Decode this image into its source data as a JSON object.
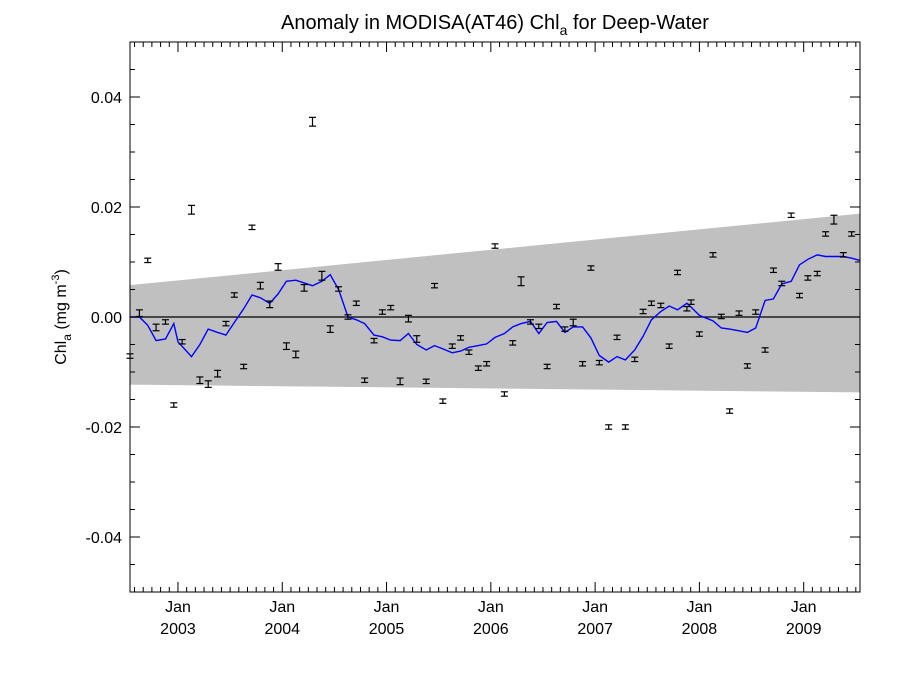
{
  "chart_data": {
    "type": "scatter",
    "title": "Anomaly in MODISA(AT46) Chl",
    "title_subscript": "a",
    "title_suffix": " for Deep-Water",
    "ylabel": "Chl",
    "ylabel_subscript": "a",
    "ylabel_units": " (mg m",
    "ylabel_units_superscript": "-3",
    "ylabel_units_close": ")",
    "xlim": [
      2002.54,
      2009.54
    ],
    "ylim": [
      -0.05,
      0.05
    ],
    "y_ticks": [
      {
        "value": -0.04,
        "label": "-0.04"
      },
      {
        "value": -0.02,
        "label": "-0.02"
      },
      {
        "value": 0.0,
        "label": "0.00"
      },
      {
        "value": 0.02,
        "label": "0.02"
      },
      {
        "value": 0.04,
        "label": "0.04"
      }
    ],
    "x_ticks": [
      {
        "value": 2003.0,
        "month": "Jan",
        "year": "2003"
      },
      {
        "value": 2004.0,
        "month": "Jan",
        "year": "2004"
      },
      {
        "value": 2005.0,
        "month": "Jan",
        "year": "2005"
      },
      {
        "value": 2006.0,
        "month": "Jan",
        "year": "2006"
      },
      {
        "value": 2007.0,
        "month": "Jan",
        "year": "2007"
      },
      {
        "value": 2008.0,
        "month": "Jan",
        "year": "2008"
      },
      {
        "value": 2009.0,
        "month": "Jan",
        "year": "2009"
      }
    ],
    "band": {
      "color": "#c0c0c0",
      "upper": [
        [
          2002.54,
          0.0058
        ],
        [
          2009.54,
          0.0188
        ]
      ],
      "lower": [
        [
          2002.54,
          -0.0123
        ],
        [
          2009.54,
          -0.0137
        ]
      ]
    },
    "zero_line": true,
    "grid": false,
    "legend": "none",
    "series": [
      {
        "marker": "errorbar",
        "color": "#000000",
        "points": [
          {
            "x": 2002.54,
            "y": -0.0071,
            "err": 0.0004
          },
          {
            "x": 2002.63,
            "y": 0.0007,
            "err": 0.0006
          },
          {
            "x": 2002.71,
            "y": 0.0103,
            "err": 0.0004
          },
          {
            "x": 2002.79,
            "y": -0.0019,
            "err": 0.0006
          },
          {
            "x": 2002.88,
            "y": -0.0009,
            "err": 0.0004
          },
          {
            "x": 2002.96,
            "y": -0.016,
            "err": 0.0004
          },
          {
            "x": 2003.04,
            "y": -0.0045,
            "err": 0.0004
          },
          {
            "x": 2003.13,
            "y": 0.0195,
            "err": 0.0008
          },
          {
            "x": 2003.21,
            "y": -0.0115,
            "err": 0.0006
          },
          {
            "x": 2003.29,
            "y": -0.0122,
            "err": 0.0006
          },
          {
            "x": 2003.38,
            "y": -0.0103,
            "err": 0.0006
          },
          {
            "x": 2003.46,
            "y": -0.0012,
            "err": 0.0004
          },
          {
            "x": 2003.54,
            "y": 0.004,
            "err": 0.0004
          },
          {
            "x": 2003.63,
            "y": -0.009,
            "err": 0.0004
          },
          {
            "x": 2003.71,
            "y": 0.0163,
            "err": 0.0004
          },
          {
            "x": 2003.79,
            "y": 0.0057,
            "err": 0.0006
          },
          {
            "x": 2003.88,
            "y": 0.0023,
            "err": 0.0006
          },
          {
            "x": 2003.96,
            "y": 0.0091,
            "err": 0.0006
          },
          {
            "x": 2004.04,
            "y": -0.0053,
            "err": 0.0006
          },
          {
            "x": 2004.13,
            "y": -0.0068,
            "err": 0.0006
          },
          {
            "x": 2004.21,
            "y": 0.0053,
            "err": 0.0006
          },
          {
            "x": 2004.29,
            "y": 0.0355,
            "err": 0.0008
          },
          {
            "x": 2004.38,
            "y": 0.0075,
            "err": 0.0008
          },
          {
            "x": 2004.46,
            "y": -0.0022,
            "err": 0.0006
          },
          {
            "x": 2004.54,
            "y": 0.0051,
            "err": 0.0004
          },
          {
            "x": 2004.63,
            "y": 0.0,
            "err": 0.0004
          },
          {
            "x": 2004.71,
            "y": 0.0025,
            "err": 0.0004
          },
          {
            "x": 2004.79,
            "y": -0.0115,
            "err": 0.0004
          },
          {
            "x": 2004.88,
            "y": -0.0043,
            "err": 0.0004
          },
          {
            "x": 2004.96,
            "y": 0.0009,
            "err": 0.0004
          },
          {
            "x": 2005.04,
            "y": 0.0017,
            "err": 0.0004
          },
          {
            "x": 2005.13,
            "y": -0.0117,
            "err": 0.0006
          },
          {
            "x": 2005.21,
            "y": -0.0003,
            "err": 0.0006
          },
          {
            "x": 2005.29,
            "y": -0.004,
            "err": 0.0006
          },
          {
            "x": 2005.38,
            "y": -0.0117,
            "err": 0.0004
          },
          {
            "x": 2005.46,
            "y": 0.0057,
            "err": 0.0004
          },
          {
            "x": 2005.54,
            "y": -0.0153,
            "err": 0.0004
          },
          {
            "x": 2005.63,
            "y": -0.0053,
            "err": 0.0004
          },
          {
            "x": 2005.71,
            "y": -0.0038,
            "err": 0.0004
          },
          {
            "x": 2005.79,
            "y": -0.0064,
            "err": 0.0004
          },
          {
            "x": 2005.88,
            "y": -0.0093,
            "err": 0.0004
          },
          {
            "x": 2005.96,
            "y": -0.0085,
            "err": 0.0004
          },
          {
            "x": 2006.04,
            "y": 0.0129,
            "err": 0.0004
          },
          {
            "x": 2006.13,
            "y": -0.014,
            "err": 0.0004
          },
          {
            "x": 2006.21,
            "y": -0.0047,
            "err": 0.0004
          },
          {
            "x": 2006.29,
            "y": 0.0065,
            "err": 0.0008
          },
          {
            "x": 2006.38,
            "y": -0.0009,
            "err": 0.0004
          },
          {
            "x": 2006.46,
            "y": -0.0017,
            "err": 0.0004
          },
          {
            "x": 2006.54,
            "y": -0.009,
            "err": 0.0004
          },
          {
            "x": 2006.63,
            "y": 0.0019,
            "err": 0.0004
          },
          {
            "x": 2006.71,
            "y": -0.0022,
            "err": 0.0004
          },
          {
            "x": 2006.79,
            "y": -0.001,
            "err": 0.0006
          },
          {
            "x": 2006.88,
            "y": -0.0085,
            "err": 0.0004
          },
          {
            "x": 2006.96,
            "y": 0.0089,
            "err": 0.0004
          },
          {
            "x": 2007.04,
            "y": -0.0083,
            "err": 0.0004
          },
          {
            "x": 2007.13,
            "y": -0.02,
            "err": 0.0004
          },
          {
            "x": 2007.21,
            "y": -0.0037,
            "err": 0.0004
          },
          {
            "x": 2007.29,
            "y": -0.02,
            "err": 0.0004
          },
          {
            "x": 2007.38,
            "y": -0.0077,
            "err": 0.0004
          },
          {
            "x": 2007.46,
            "y": 0.001,
            "err": 0.0004
          },
          {
            "x": 2007.54,
            "y": 0.0025,
            "err": 0.0004
          },
          {
            "x": 2007.63,
            "y": 0.0021,
            "err": 0.0004
          },
          {
            "x": 2007.71,
            "y": -0.0053,
            "err": 0.0004
          },
          {
            "x": 2007.79,
            "y": 0.0081,
            "err": 0.0004
          },
          {
            "x": 2007.88,
            "y": 0.0015,
            "err": 0.0004
          },
          {
            "x": 2007.92,
            "y": 0.0027,
            "err": 0.0004
          },
          {
            "x": 2008.0,
            "y": -0.0031,
            "err": 0.0004
          },
          {
            "x": 2008.13,
            "y": 0.0113,
            "err": 0.0004
          },
          {
            "x": 2008.21,
            "y": 0.0001,
            "err": 0.0004
          },
          {
            "x": 2008.29,
            "y": -0.0171,
            "err": 0.0004
          },
          {
            "x": 2008.38,
            "y": 0.0007,
            "err": 0.0004
          },
          {
            "x": 2008.46,
            "y": -0.0089,
            "err": 0.0004
          },
          {
            "x": 2008.54,
            "y": 0.0009,
            "err": 0.0004
          },
          {
            "x": 2008.63,
            "y": -0.006,
            "err": 0.0004
          },
          {
            "x": 2008.71,
            "y": 0.0085,
            "err": 0.0004
          },
          {
            "x": 2008.79,
            "y": 0.0061,
            "err": 0.0004
          },
          {
            "x": 2008.88,
            "y": 0.0185,
            "err": 0.0004
          },
          {
            "x": 2008.96,
            "y": 0.0039,
            "err": 0.0004
          },
          {
            "x": 2009.04,
            "y": 0.0071,
            "err": 0.0004
          },
          {
            "x": 2009.13,
            "y": 0.0079,
            "err": 0.0004
          },
          {
            "x": 2009.21,
            "y": 0.0151,
            "err": 0.0004
          },
          {
            "x": 2009.29,
            "y": 0.0177,
            "err": 0.0008
          },
          {
            "x": 2009.38,
            "y": 0.0113,
            "err": 0.0004
          },
          {
            "x": 2009.46,
            "y": 0.0151,
            "err": 0.0004
          }
        ]
      },
      {
        "marker": "line",
        "color": "#0000ff",
        "points": [
          [
            2002.54,
            0.0
          ],
          [
            2002.63,
            0.0
          ],
          [
            2002.71,
            -0.0015
          ],
          [
            2002.79,
            -0.0043
          ],
          [
            2002.88,
            -0.004
          ],
          [
            2002.96,
            -0.0012
          ],
          [
            2003.0,
            -0.0045
          ],
          [
            2003.13,
            -0.0072
          ],
          [
            2003.21,
            -0.005
          ],
          [
            2003.29,
            -0.0022
          ],
          [
            2003.38,
            -0.0028
          ],
          [
            2003.46,
            -0.0033
          ],
          [
            2003.54,
            -0.001
          ],
          [
            2003.63,
            0.0015
          ],
          [
            2003.71,
            0.004
          ],
          [
            2003.79,
            0.0035
          ],
          [
            2003.88,
            0.0025
          ],
          [
            2003.96,
            0.0042
          ],
          [
            2004.04,
            0.0065
          ],
          [
            2004.13,
            0.0067
          ],
          [
            2004.21,
            0.0062
          ],
          [
            2004.29,
            0.0057
          ],
          [
            2004.38,
            0.0065
          ],
          [
            2004.46,
            0.0077
          ],
          [
            2004.54,
            0.005
          ],
          [
            2004.63,
            0.0
          ],
          [
            2004.71,
            -0.0005
          ],
          [
            2004.79,
            -0.0012
          ],
          [
            2004.88,
            -0.0033
          ],
          [
            2004.96,
            -0.0036
          ],
          [
            2005.04,
            -0.0042
          ],
          [
            2005.13,
            -0.0043
          ],
          [
            2005.21,
            -0.003
          ],
          [
            2005.29,
            -0.005
          ],
          [
            2005.38,
            -0.006
          ],
          [
            2005.46,
            -0.0052
          ],
          [
            2005.54,
            -0.0058
          ],
          [
            2005.63,
            -0.0065
          ],
          [
            2005.71,
            -0.0062
          ],
          [
            2005.79,
            -0.0055
          ],
          [
            2005.88,
            -0.0052
          ],
          [
            2005.96,
            -0.0049
          ],
          [
            2006.04,
            -0.0037
          ],
          [
            2006.13,
            -0.003
          ],
          [
            2006.21,
            -0.0018
          ],
          [
            2006.29,
            -0.0012
          ],
          [
            2006.38,
            -0.0008
          ],
          [
            2006.46,
            -0.003
          ],
          [
            2006.54,
            -0.001
          ],
          [
            2006.63,
            -0.0008
          ],
          [
            2006.71,
            -0.0028
          ],
          [
            2006.79,
            -0.0018
          ],
          [
            2006.88,
            -0.0018
          ],
          [
            2006.96,
            -0.0038
          ],
          [
            2007.04,
            -0.007
          ],
          [
            2007.13,
            -0.0082
          ],
          [
            2007.21,
            -0.0072
          ],
          [
            2007.29,
            -0.0078
          ],
          [
            2007.38,
            -0.006
          ],
          [
            2007.46,
            -0.0035
          ],
          [
            2007.54,
            -0.0005
          ],
          [
            2007.63,
            0.001
          ],
          [
            2007.71,
            0.002
          ],
          [
            2007.79,
            0.0013
          ],
          [
            2007.88,
            0.0025
          ],
          [
            2007.92,
            0.0018
          ],
          [
            2008.0,
            0.0003
          ],
          [
            2008.13,
            -0.0007
          ],
          [
            2008.21,
            -0.002
          ],
          [
            2008.29,
            -0.0022
          ],
          [
            2008.38,
            -0.0025
          ],
          [
            2008.46,
            -0.0028
          ],
          [
            2008.54,
            -0.002
          ],
          [
            2008.63,
            0.003
          ],
          [
            2008.71,
            0.0033
          ],
          [
            2008.79,
            0.006
          ],
          [
            2008.88,
            0.0065
          ],
          [
            2008.96,
            0.0095
          ],
          [
            2009.04,
            0.0105
          ],
          [
            2009.13,
            0.0113
          ],
          [
            2009.21,
            0.011
          ],
          [
            2009.29,
            0.011
          ],
          [
            2009.38,
            0.011
          ],
          [
            2009.46,
            0.0107
          ],
          [
            2009.54,
            0.0103
          ]
        ]
      }
    ]
  }
}
